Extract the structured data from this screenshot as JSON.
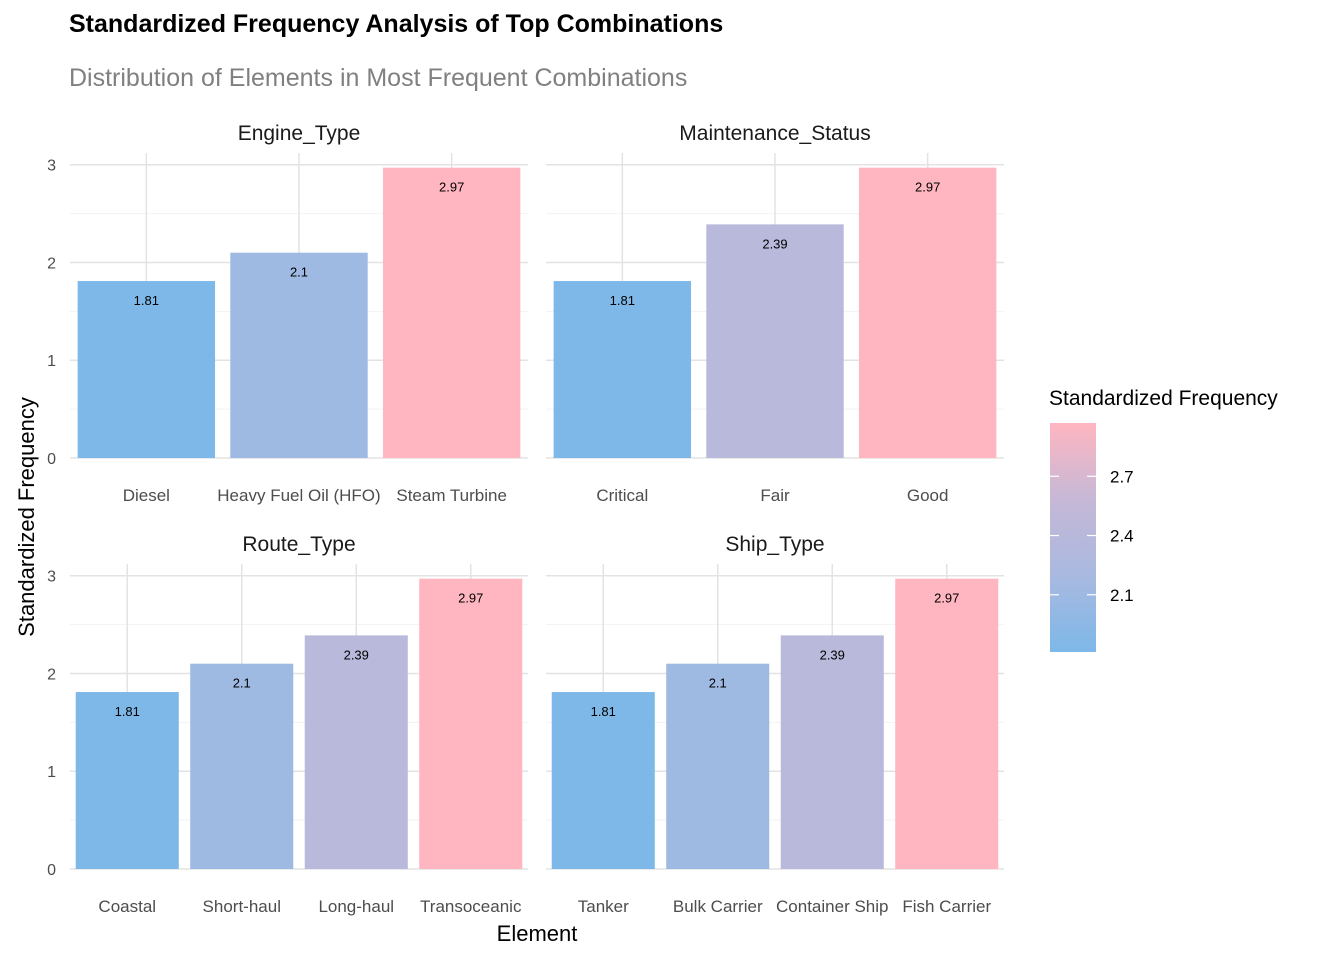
{
  "title": "Standardized Frequency Analysis of Top Combinations",
  "subtitle": "Distribution of Elements in Most Frequent Combinations",
  "chart_data": {
    "type": "bar",
    "title": "Standardized Frequency Analysis of Top Combinations",
    "subtitle": "Distribution of Elements in Most Frequent Combinations",
    "xlabel": "Element",
    "ylabel": "Standardized Frequency",
    "ylim": [
      0,
      3
    ],
    "yticks": [
      0,
      1,
      2,
      3
    ],
    "grid": true,
    "legend": {
      "title": "Standardized Frequency",
      "placement": "right",
      "ticks": [
        2.1,
        2.4,
        2.7
      ],
      "range": [
        1.81,
        2.97
      ],
      "colors": [
        "#7DB8E8",
        "#A9B9E0",
        "#C6B8D6",
        "#FFB6C1"
      ]
    },
    "facets": [
      {
        "name": "Engine_Type",
        "categories": [
          "Diesel",
          "Heavy Fuel Oil (HFO)",
          "Steam Turbine"
        ],
        "values": [
          1.81,
          2.1,
          2.97
        ],
        "labels": [
          "1.81",
          "2.1",
          "2.97"
        ]
      },
      {
        "name": "Maintenance_Status",
        "categories": [
          "Critical",
          "Fair",
          "Good"
        ],
        "values": [
          1.81,
          2.39,
          2.97
        ],
        "labels": [
          "1.81",
          "2.39",
          "2.97"
        ]
      },
      {
        "name": "Route_Type",
        "categories": [
          "Coastal",
          "Short-haul",
          "Long-haul",
          "Transoceanic"
        ],
        "values": [
          1.81,
          2.1,
          2.39,
          2.97
        ],
        "labels": [
          "1.81",
          "2.1",
          "2.39",
          "2.97"
        ]
      },
      {
        "name": "Ship_Type",
        "categories": [
          "Tanker",
          "Bulk Carrier",
          "Container Ship",
          "Fish Carrier"
        ],
        "values": [
          1.81,
          2.1,
          2.39,
          2.97
        ],
        "labels": [
          "1.81",
          "2.1",
          "2.39",
          "2.97"
        ]
      }
    ]
  }
}
